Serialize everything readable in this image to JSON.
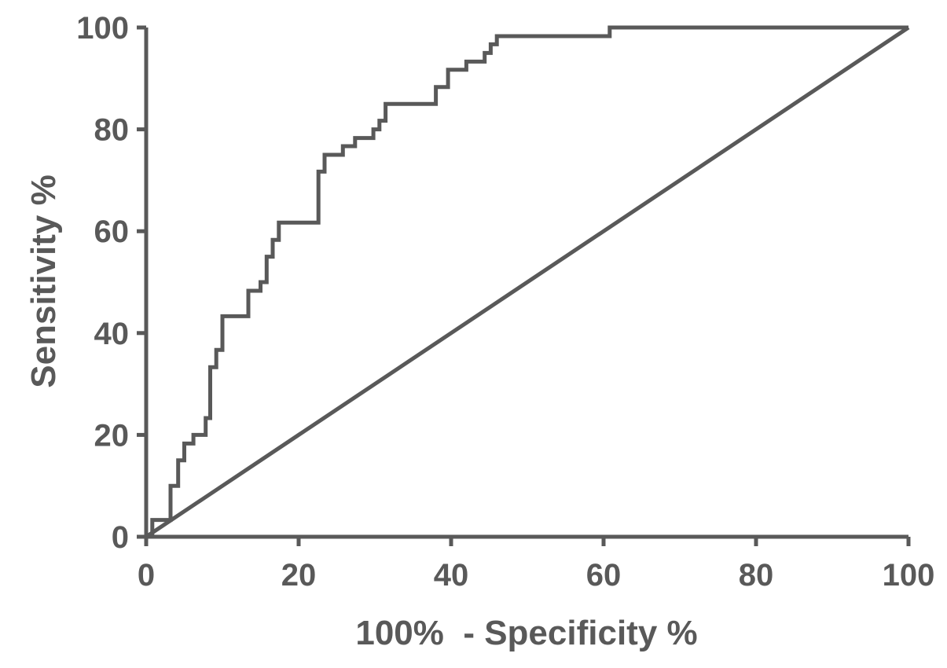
{
  "chart_data": {
    "type": "line",
    "title": "",
    "xlabel": "100%  - Specificity %",
    "ylabel": "Sensitivity %",
    "xlim": [
      0,
      100
    ],
    "ylim": [
      0,
      100
    ],
    "xticks": [
      "0",
      "20",
      "40",
      "60",
      "80",
      "100"
    ],
    "yticks": [
      "0",
      "20",
      "40",
      "60",
      "80",
      "100"
    ],
    "grid": false,
    "legend": "none",
    "color": "#595959",
    "series": [
      {
        "points": [
          [
            0,
            0
          ],
          [
            0.8,
            0
          ],
          [
            0.8,
            3.3
          ],
          [
            3.2,
            3.3
          ],
          [
            3.2,
            10
          ],
          [
            4.2,
            10
          ],
          [
            4.2,
            15
          ],
          [
            5.0,
            15
          ],
          [
            5.0,
            18.3
          ],
          [
            6.2,
            18.3
          ],
          [
            6.2,
            20
          ],
          [
            7.8,
            20
          ],
          [
            7.8,
            23.3
          ],
          [
            8.4,
            23.3
          ],
          [
            8.4,
            33.3
          ],
          [
            9.2,
            33.3
          ],
          [
            9.2,
            36.7
          ],
          [
            10.0,
            36.7
          ],
          [
            10.0,
            43.3
          ],
          [
            13.4,
            43.3
          ],
          [
            13.4,
            48.3
          ],
          [
            15.0,
            48.3
          ],
          [
            15.0,
            50
          ],
          [
            15.8,
            50
          ],
          [
            15.8,
            55
          ],
          [
            16.6,
            55
          ],
          [
            16.6,
            58.3
          ],
          [
            17.4,
            58.3
          ],
          [
            17.4,
            61.7
          ],
          [
            22.6,
            61.7
          ],
          [
            22.6,
            71.7
          ],
          [
            23.4,
            71.7
          ],
          [
            23.4,
            75
          ],
          [
            25.8,
            75
          ],
          [
            25.8,
            76.7
          ],
          [
            27.4,
            76.7
          ],
          [
            27.4,
            78.3
          ],
          [
            29.8,
            78.3
          ],
          [
            29.8,
            80
          ],
          [
            30.6,
            80
          ],
          [
            30.6,
            81.7
          ],
          [
            31.4,
            81.7
          ],
          [
            31.4,
            85
          ],
          [
            38.0,
            85
          ],
          [
            38.0,
            88.3
          ],
          [
            39.6,
            88.3
          ],
          [
            39.6,
            91.7
          ],
          [
            42.0,
            91.7
          ],
          [
            42.0,
            93.3
          ],
          [
            44.4,
            93.3
          ],
          [
            44.4,
            95
          ],
          [
            45.2,
            95
          ],
          [
            45.2,
            96.7
          ],
          [
            46.0,
            96.7
          ],
          [
            46.0,
            98.3
          ],
          [
            60.8,
            98.3
          ],
          [
            60.8,
            100
          ],
          [
            100,
            100
          ]
        ]
      },
      {
        "points": [
          [
            0,
            0
          ],
          [
            100,
            100
          ]
        ]
      }
    ]
  }
}
